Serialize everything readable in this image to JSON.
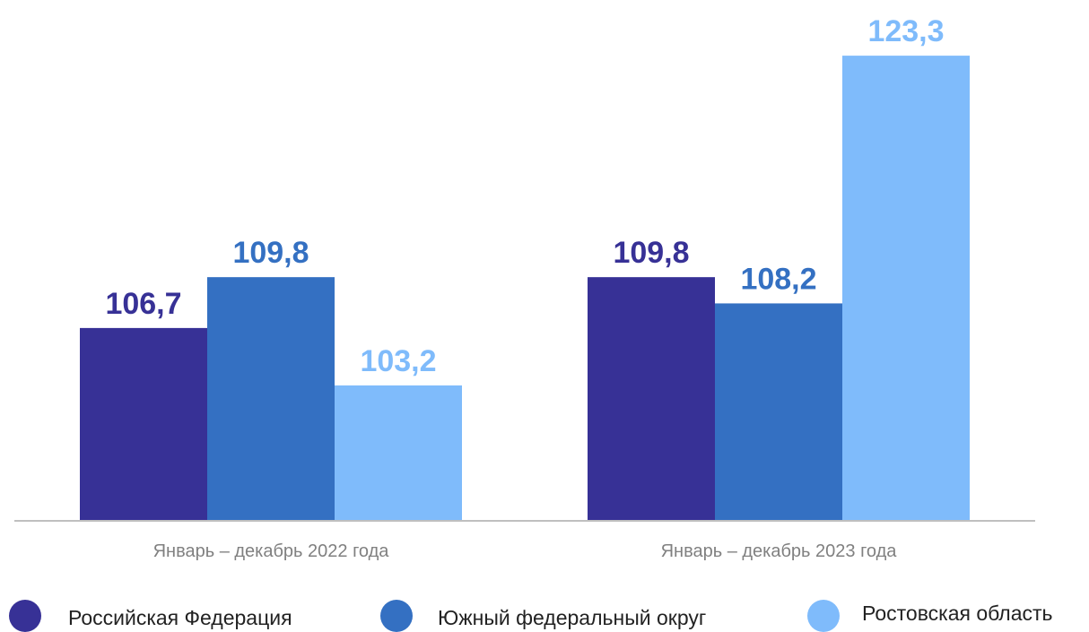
{
  "chart_data": {
    "type": "bar",
    "categories": [
      "Январь – декабрь 2022 года",
      "Январь – декабрь 2023 года"
    ],
    "series": [
      {
        "name": "Российская Федерация",
        "values": [
          106.7,
          109.8
        ],
        "labels": [
          "106,7",
          "109,8"
        ],
        "color": "#373196"
      },
      {
        "name": "Южный федеральный округ",
        "values": [
          109.8,
          108.2
        ],
        "labels": [
          "109,8",
          "108,2"
        ],
        "color": "#3470c2"
      },
      {
        "name": "Ростовская область",
        "values": [
          103.2,
          123.3
        ],
        "labels": [
          "103,2",
          "123,3"
        ],
        "color": "#7fbbfb"
      }
    ],
    "ylim": [
      95,
      125
    ],
    "grid": false,
    "legend_position": "bottom"
  }
}
